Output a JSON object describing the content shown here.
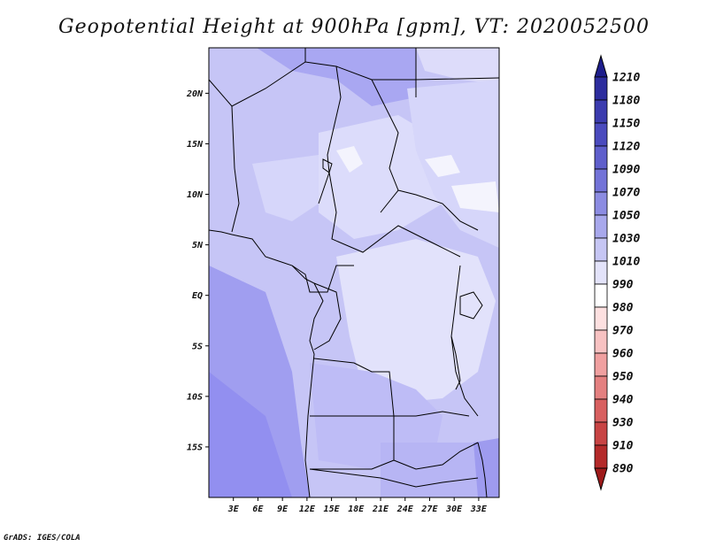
{
  "title": "Geopotential Height at 900hPa [gpm], VT: 2020052500",
  "credit": "GrADS: IGES/COLA",
  "chart_data": {
    "type": "heatmap",
    "title": "Geopotential Height at 900hPa [gpm], VT: 2020052500",
    "units": "gpm",
    "lon_range": [
      0,
      35.5
    ],
    "lat_range": [
      -20,
      24.5
    ],
    "lon_ticks": [
      "3E",
      "6E",
      "9E",
      "12E",
      "15E",
      "18E",
      "21E",
      "24E",
      "27E",
      "30E",
      "33E"
    ],
    "lon_tick_values": [
      3,
      6,
      9,
      12,
      15,
      18,
      21,
      24,
      27,
      30,
      33
    ],
    "lat_ticks": [
      "20N",
      "15N",
      "10N",
      "5N",
      "EQ",
      "5S",
      "10S",
      "15S"
    ],
    "lat_tick_values": [
      20,
      15,
      10,
      5,
      0,
      -5,
      -10,
      -15
    ],
    "colorbar": {
      "labels": [
        "1210",
        "1180",
        "1150",
        "1120",
        "1090",
        "1070",
        "1050",
        "1030",
        "1010",
        "990",
        "980",
        "970",
        "960",
        "950",
        "940",
        "930",
        "910",
        "890"
      ],
      "colors": [
        "#1e1e8c",
        "#2d2d9e",
        "#3c3caf",
        "#4b4bbe",
        "#5f5fcc",
        "#7373d8",
        "#8c8ce2",
        "#a8a8ec",
        "#c6c6f4",
        "#e3e3fa",
        "#ffffff",
        "#fde0e0",
        "#f8c2c2",
        "#f0a0a0",
        "#e48080",
        "#d86060",
        "#c84444",
        "#b42a2a",
        "#9e1a1a"
      ]
    },
    "fields": [
      {
        "region": "ocean-southwest",
        "value_range": [
          1050,
          1070
        ],
        "color": "#a09ef0"
      },
      {
        "region": "atlantic-west",
        "value_range": [
          1030,
          1050
        ],
        "color": "#b5b3f4"
      },
      {
        "region": "northwest-sahel",
        "value_range": [
          1030,
          1050
        ],
        "color": "#b5b3f4"
      },
      {
        "region": "nigeria-chad",
        "value_range": [
          1010,
          1030
        ],
        "color": "#d6d6fa"
      },
      {
        "region": "sudan-east",
        "value_range": [
          1010,
          1030
        ],
        "color": "#d6d6fa"
      },
      {
        "region": "congo-basin",
        "value_range": [
          1010,
          1030
        ],
        "color": "#e2e2fb"
      },
      {
        "region": "angola-zambia",
        "value_range": [
          1030,
          1050
        ],
        "color": "#bebcf6"
      },
      {
        "region": "north-sahara",
        "value_range": [
          1050,
          1070
        ],
        "color": "#a9a7f2"
      },
      {
        "region": "southern-africa",
        "value_range": [
          1030,
          1050
        ],
        "color": "#b7b5f4"
      },
      {
        "region": "low-pockets",
        "value_range": [
          990,
          1010
        ],
        "color": "#f4f4fd"
      }
    ]
  }
}
